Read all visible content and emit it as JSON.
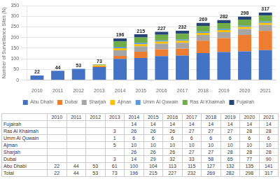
{
  "chart_data": {
    "type": "bar",
    "stacked": true,
    "categories": [
      "2010",
      "2011",
      "2012",
      "2013",
      "2014",
      "2015",
      "2016",
      "2017",
      "2018",
      "2019",
      "2020",
      "2021"
    ],
    "ylabel": "Number of Surveillance Sites (N)",
    "ylim": [
      0,
      350
    ],
    "yticks": [
      0,
      50,
      100,
      150,
      200,
      250,
      300,
      350
    ],
    "grid": true,
    "legend": "bottom",
    "series": [
      {
        "name": "Abu Dhabi",
        "color": "#4472C4",
        "values": [
          22,
          44,
          53,
          61,
          100,
          104,
          113,
          115,
          127,
          132,
          135,
          141
        ]
      },
      {
        "name": "Dubai",
        "color": "#ED7D31",
        "values": [
          0,
          0,
          0,
          3,
          14,
          29,
          32,
          33,
          58,
          65,
          77,
          90
        ]
      },
      {
        "name": "Sharjah",
        "color": "#A5A5A5",
        "values": [
          0,
          0,
          0,
          0,
          26,
          26,
          26,
          27,
          27,
          28,
          28,
          28
        ]
      },
      {
        "name": "Ajman",
        "color": "#FFC000",
        "values": [
          0,
          0,
          0,
          5,
          10,
          10,
          10,
          10,
          10,
          10,
          10,
          10
        ]
      },
      {
        "name": "Umm Al Quwain",
        "color": "#5B9BD5",
        "values": [
          0,
          0,
          0,
          1,
          6,
          6,
          6,
          6,
          6,
          6,
          6,
          6
        ]
      },
      {
        "name": "Ras Al Khaimah",
        "color": "#70AD47",
        "values": [
          0,
          0,
          0,
          3,
          26,
          26,
          26,
          27,
          27,
          27,
          28,
          28
        ]
      },
      {
        "name": "Fujairah",
        "color": "#264478",
        "values": [
          0,
          0,
          0,
          0,
          14,
          14,
          14,
          14,
          14,
          14,
          14,
          14
        ]
      }
    ],
    "totals": [
      22,
      44,
      53,
      73,
      196,
      215,
      227,
      232,
      269,
      282,
      298,
      317
    ],
    "table": {
      "rows": [
        {
          "name": "Fujairah",
          "values": [
            null,
            null,
            null,
            null,
            14,
            14,
            14,
            14,
            14,
            14,
            14,
            14
          ]
        },
        {
          "name": "Ras Al Khaimah",
          "values": [
            null,
            null,
            null,
            3,
            26,
            26,
            26,
            27,
            27,
            27,
            28,
            28
          ]
        },
        {
          "name": "Umm Al Quwain",
          "values": [
            null,
            null,
            null,
            1,
            6,
            6,
            6,
            6,
            6,
            6,
            6,
            6
          ]
        },
        {
          "name": "Ajman",
          "values": [
            null,
            null,
            null,
            5,
            10,
            10,
            10,
            10,
            10,
            10,
            10,
            10
          ]
        },
        {
          "name": "Sharjah",
          "values": [
            null,
            null,
            null,
            null,
            26,
            26,
            26,
            27,
            27,
            28,
            28,
            28
          ]
        },
        {
          "name": "Dubai",
          "values": [
            null,
            null,
            null,
            3,
            14,
            29,
            32,
            33,
            58,
            65,
            77,
            90
          ]
        },
        {
          "name": "Abu Dhabi",
          "values": [
            22,
            44,
            53,
            61,
            100,
            104,
            113,
            115,
            127,
            132,
            135,
            141
          ]
        },
        {
          "name": "Total",
          "values": [
            22,
            44,
            53,
            73,
            196,
            215,
            227,
            232,
            269,
            282,
            298,
            317
          ]
        }
      ]
    }
  }
}
